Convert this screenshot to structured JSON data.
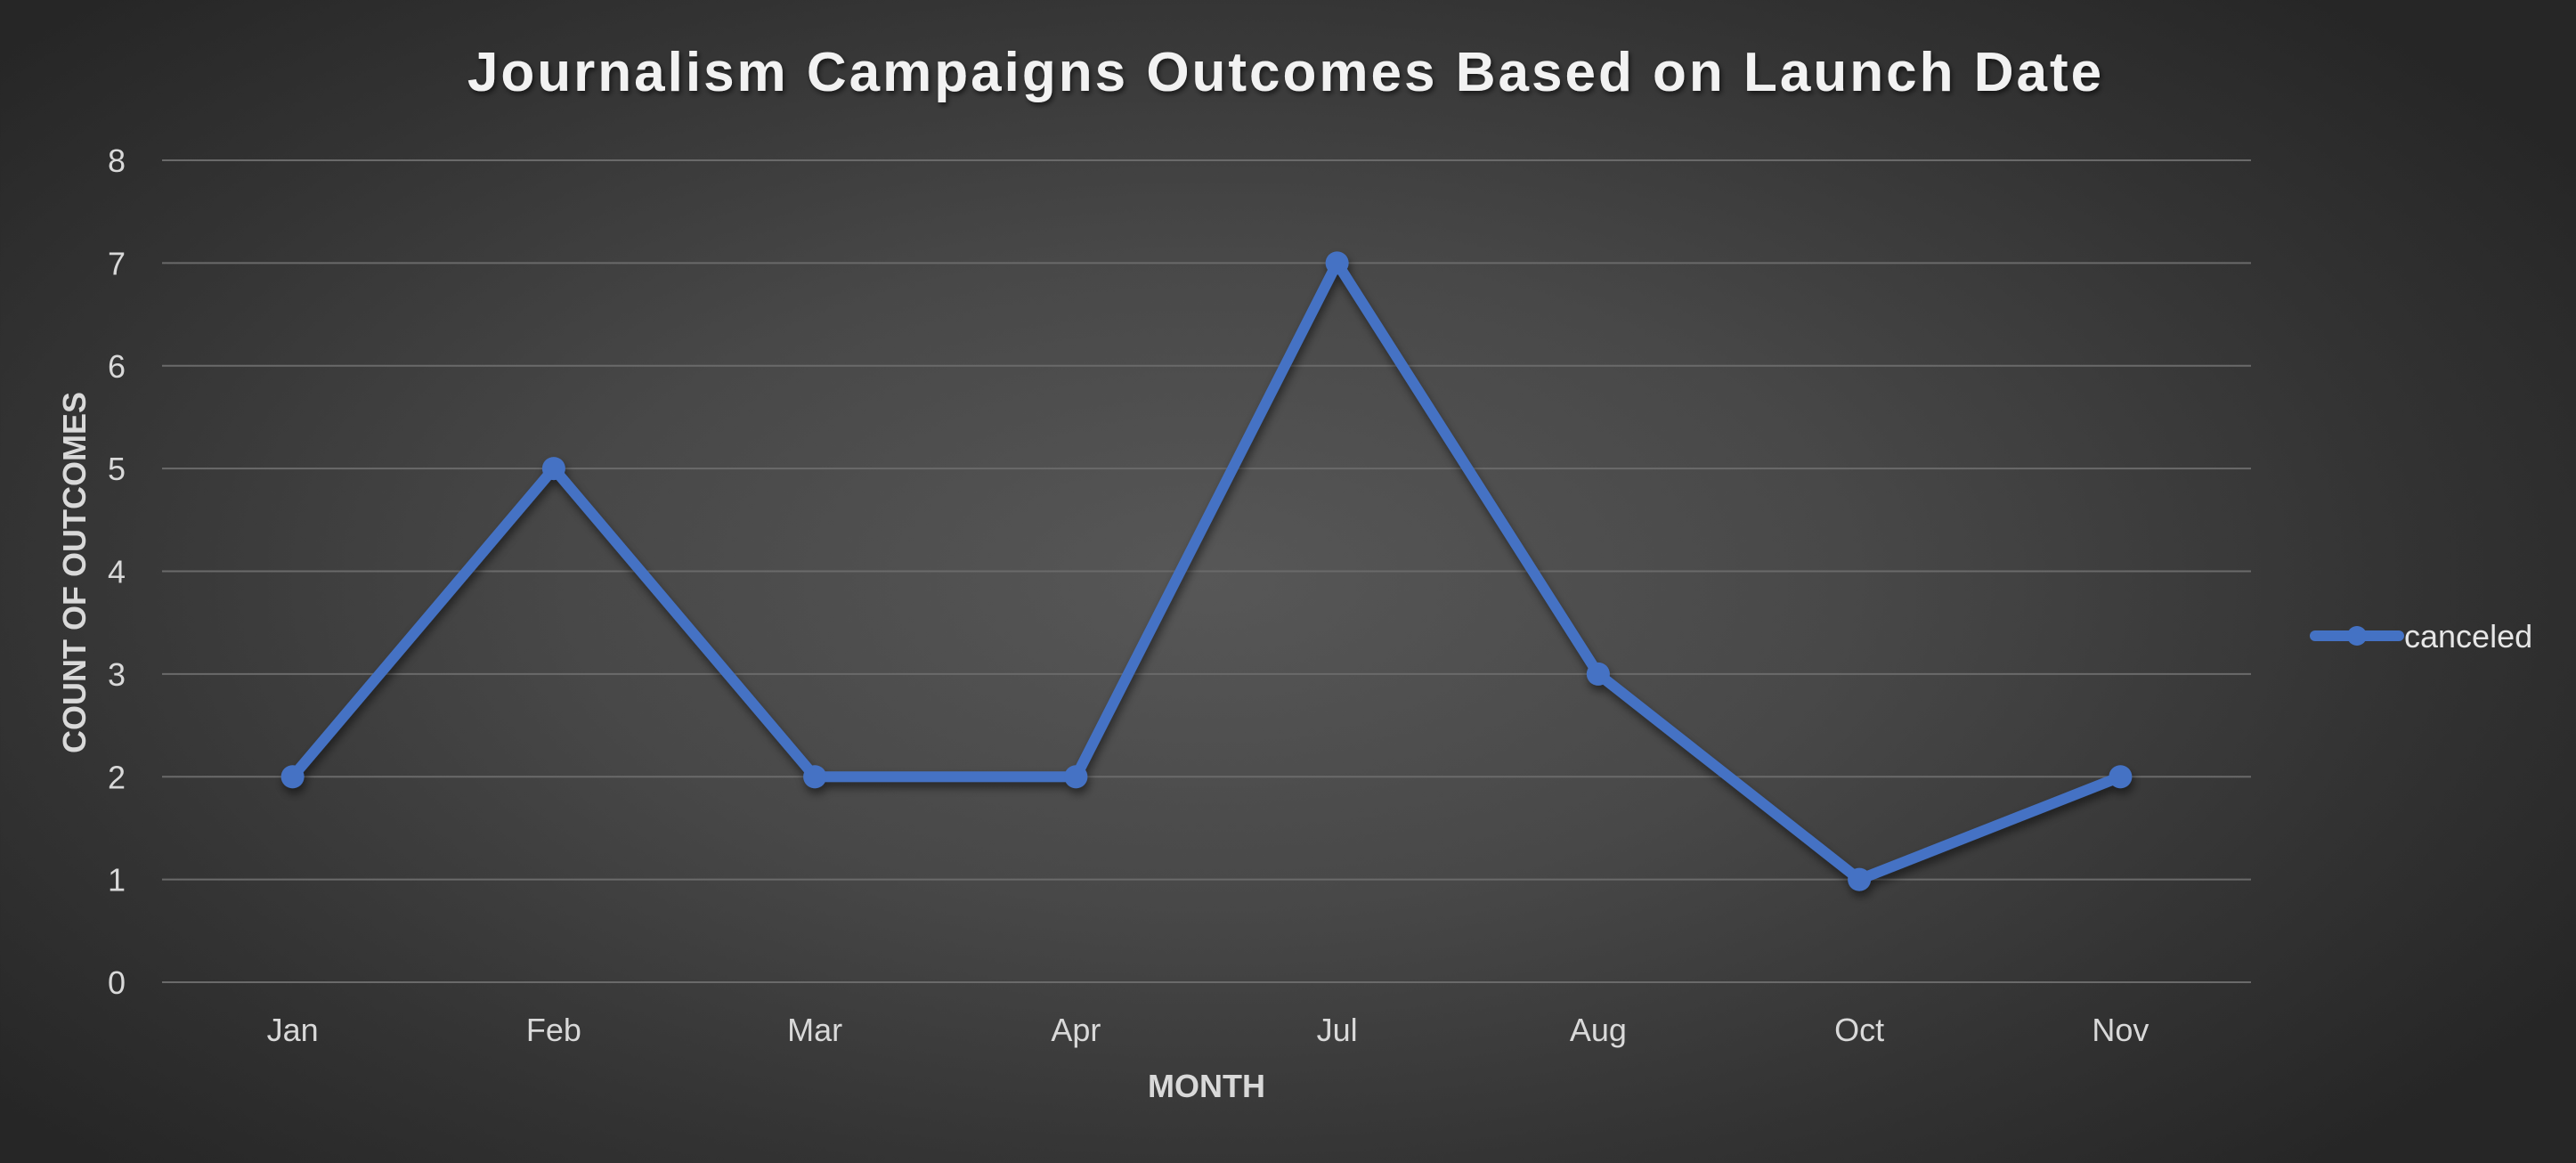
{
  "chart_data": {
    "type": "line",
    "title": "Journalism Campaigns Outcomes Based on Launch Date",
    "xlabel": "MONTH",
    "ylabel": "COUNT OF OUTCOMES",
    "categories": [
      "Jan",
      "Feb",
      "Mar",
      "Apr",
      "Jul",
      "Aug",
      "Oct",
      "Nov"
    ],
    "series": [
      {
        "name": "canceled",
        "values": [
          2,
          5,
          2,
          2,
          7,
          3,
          1,
          2
        ],
        "color": "#4472c4"
      }
    ],
    "ylim": [
      0,
      8
    ],
    "yticks": [
      0,
      1,
      2,
      3,
      4,
      5,
      6,
      7,
      8
    ],
    "grid": true,
    "legend": "right"
  }
}
